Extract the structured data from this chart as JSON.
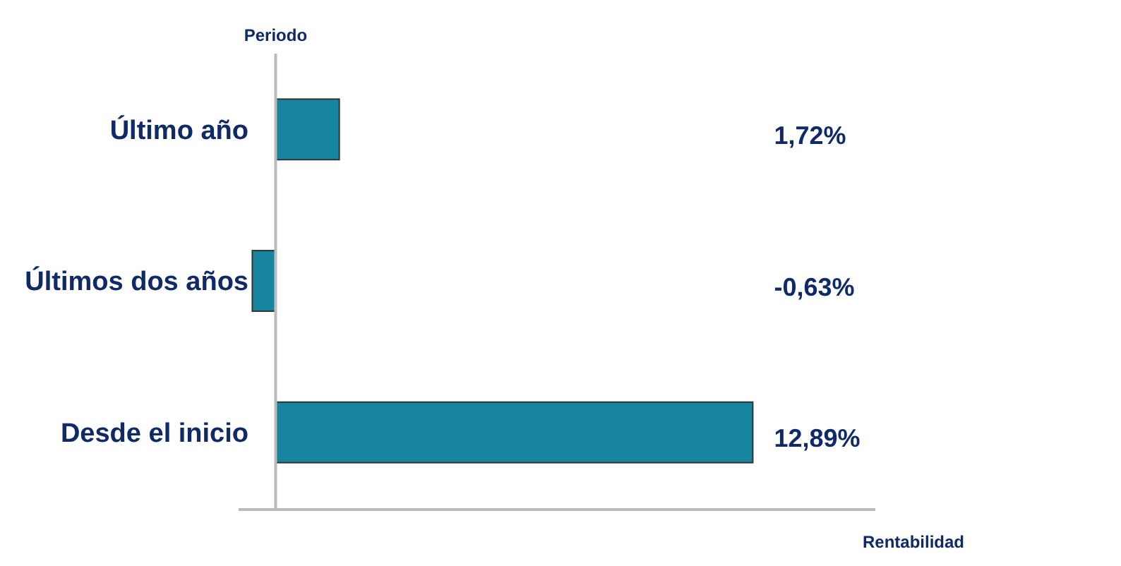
{
  "chart_data": {
    "type": "bar",
    "orientation": "horizontal",
    "xlabel": "Rentabilidad",
    "ylabel": "Periodo",
    "categories": [
      "Último año",
      "Últimos dos años",
      "Desde el inicio"
    ],
    "values": [
      1.72,
      -0.63,
      12.89
    ],
    "value_labels": [
      "1,72%",
      "-0,63%",
      "12,89%"
    ],
    "color": "#1784a0",
    "xlim": [
      -1,
      16.2
    ],
    "tick_labels": "y"
  }
}
